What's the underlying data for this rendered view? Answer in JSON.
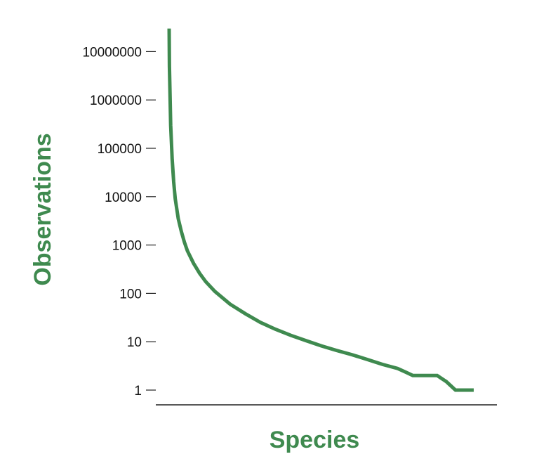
{
  "chart_data": {
    "type": "line",
    "title": "",
    "xlabel": "Species",
    "ylabel": "Observations",
    "y_scale": "log",
    "ylim": [
      1,
      30000000
    ],
    "y_ticks": [
      {
        "value": 1,
        "label": "1"
      },
      {
        "value": 10,
        "label": "10"
      },
      {
        "value": 100,
        "label": "100"
      },
      {
        "value": 1000,
        "label": "1000"
      },
      {
        "value": 10000,
        "label": "10000"
      },
      {
        "value": 100000,
        "label": "100000"
      },
      {
        "value": 1000000,
        "label": "1000000"
      },
      {
        "value": 10000000,
        "label": "10000000"
      }
    ],
    "x_ticks": [],
    "grid": false,
    "legend": "none",
    "color": "#3f8a4f",
    "series": [
      {
        "name": "",
        "x": [
          0,
          0.1,
          0.5,
          1,
          1.5,
          2,
          3,
          4,
          5,
          6,
          8,
          10,
          12,
          15,
          20,
          25,
          30,
          35,
          40,
          45,
          50,
          55,
          60,
          65,
          70,
          75,
          78,
          80,
          83,
          85,
          88,
          91,
          94,
          100
        ],
        "y": [
          30000000,
          5000000,
          300000,
          60000,
          20000,
          9000,
          3500,
          1900,
          1150,
          760,
          420,
          260,
          175,
          110,
          60,
          38,
          25,
          18,
          13.5,
          10.5,
          8.2,
          6.6,
          5.4,
          4.3,
          3.4,
          2.8,
          2.3,
          2,
          2,
          2,
          2,
          1.5,
          1,
          1
        ]
      }
    ]
  }
}
